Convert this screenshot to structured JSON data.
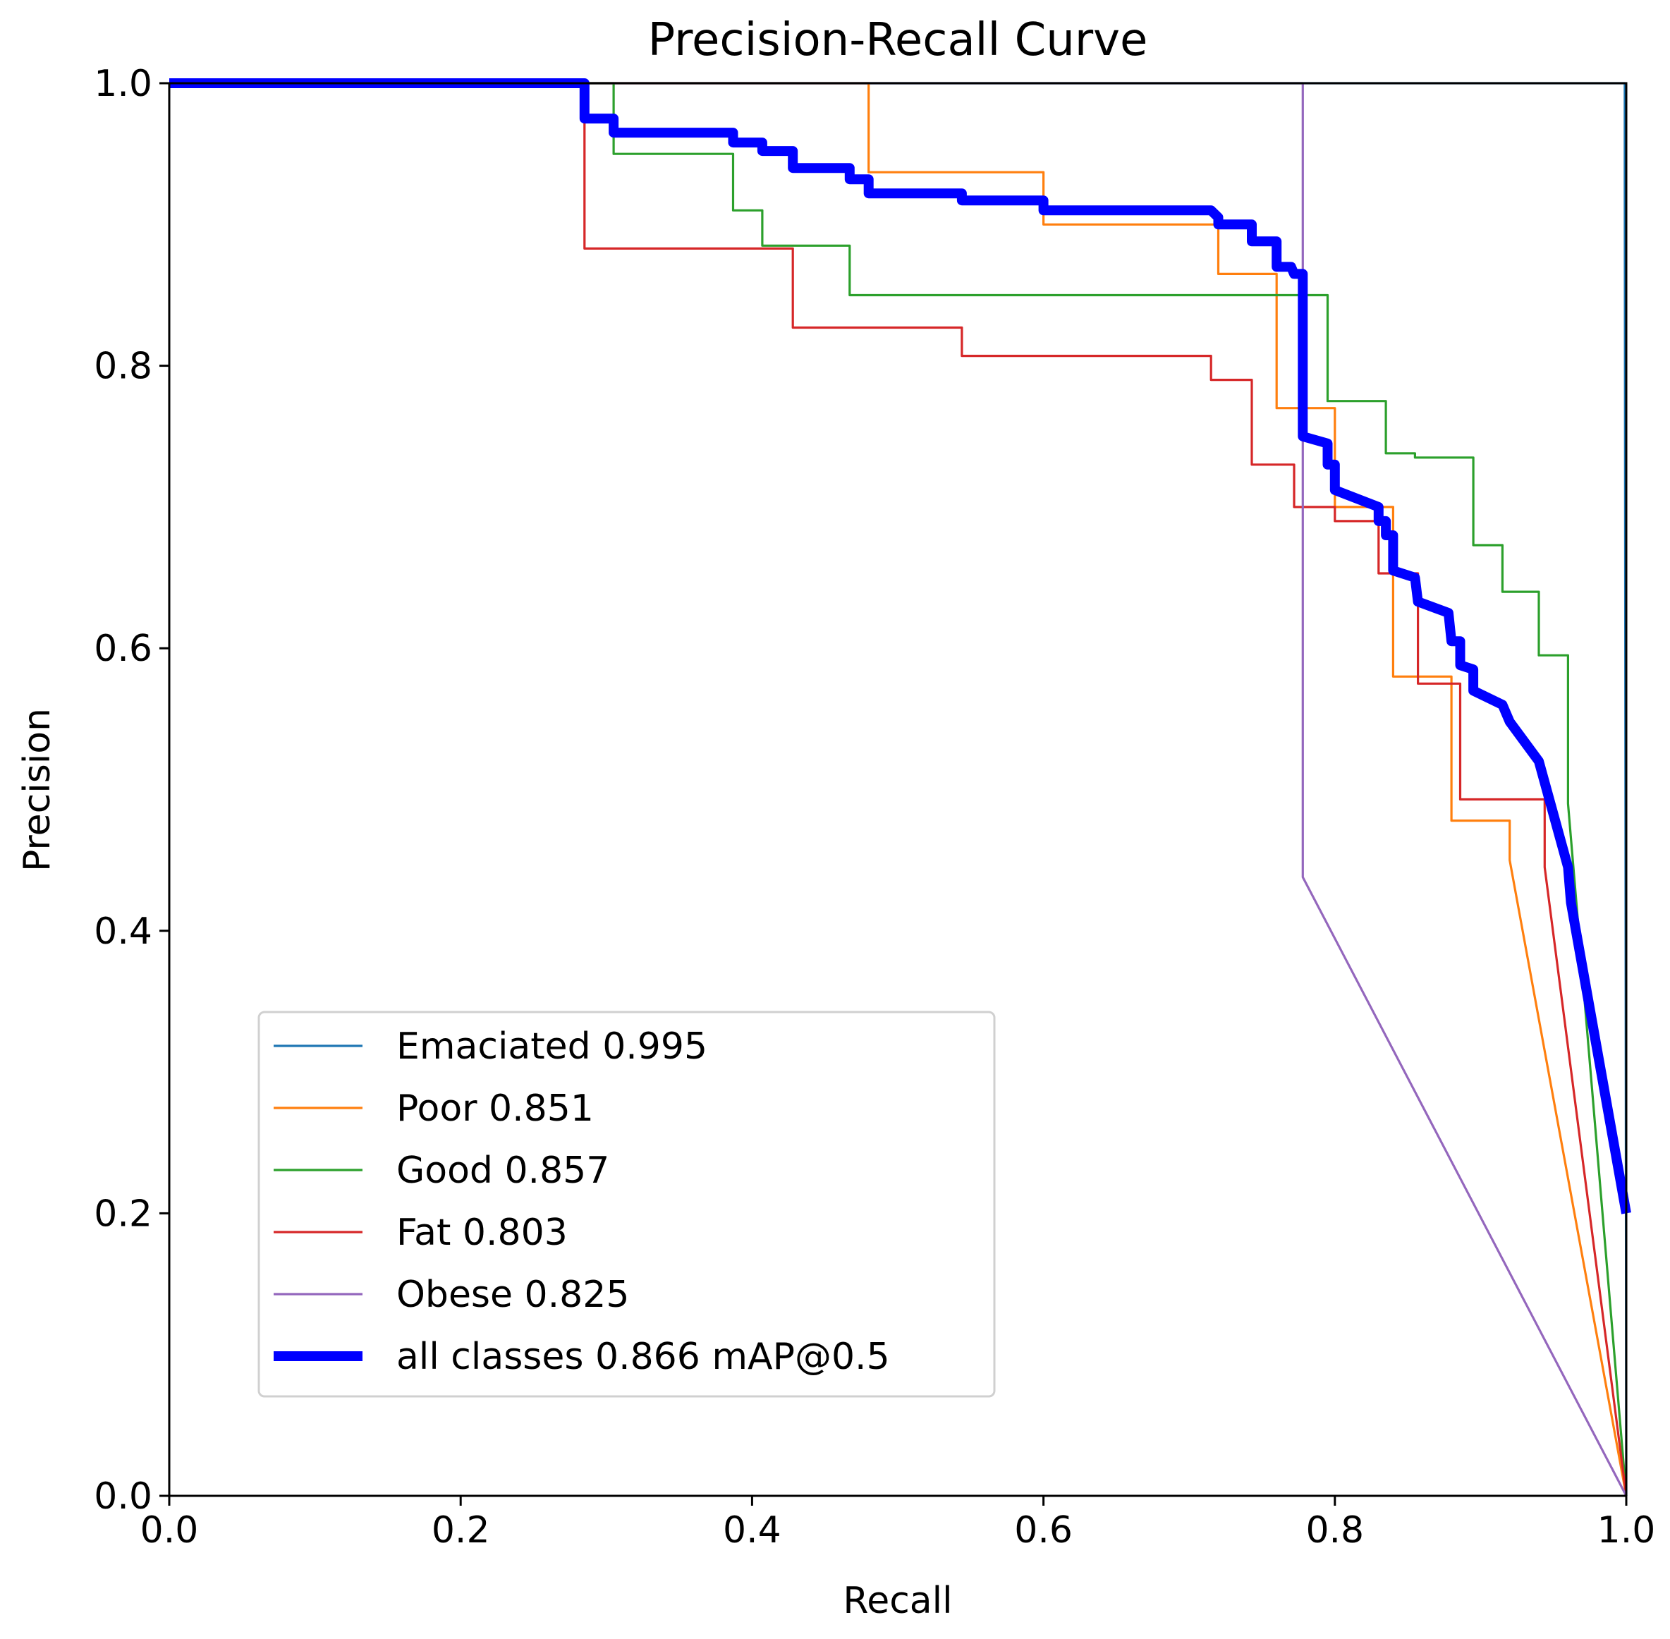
{
  "chart_data": {
    "type": "line",
    "title": "Precision-Recall Curve",
    "xlabel": "Recall",
    "ylabel": "Precision",
    "xlim": [
      0,
      1
    ],
    "ylim": [
      0,
      1
    ],
    "xticks": [
      "0.0",
      "0.2",
      "0.4",
      "0.6",
      "0.8",
      "1.0"
    ],
    "yticks": [
      "0.0",
      "0.2",
      "0.4",
      "0.6",
      "0.8",
      "1.0"
    ],
    "legend_position": "lower-left",
    "series": [
      {
        "name": "Emaciated 0.995",
        "color": "#1f77b4",
        "points": [
          [
            0,
            1
          ],
          [
            0.999,
            1
          ],
          [
            0.999,
            0.93
          ],
          [
            1.0,
            0.0
          ]
        ]
      },
      {
        "name": "Poor 0.851",
        "color": "#ff7f0e",
        "points": [
          [
            0,
            1
          ],
          [
            0.48,
            1
          ],
          [
            0.48,
            0.937
          ],
          [
            0.6,
            0.937
          ],
          [
            0.6,
            0.9
          ],
          [
            0.72,
            0.9
          ],
          [
            0.72,
            0.865
          ],
          [
            0.76,
            0.865
          ],
          [
            0.76,
            0.77
          ],
          [
            0.8,
            0.77
          ],
          [
            0.8,
            0.7
          ],
          [
            0.84,
            0.7
          ],
          [
            0.84,
            0.58
          ],
          [
            0.88,
            0.58
          ],
          [
            0.88,
            0.478
          ],
          [
            0.92,
            0.478
          ],
          [
            0.92,
            0.45
          ],
          [
            1.0,
            0.0
          ]
        ]
      },
      {
        "name": "Good 0.857",
        "color": "#2ca02c",
        "points": [
          [
            0,
            1
          ],
          [
            0.305,
            1
          ],
          [
            0.305,
            0.95
          ],
          [
            0.387,
            0.95
          ],
          [
            0.387,
            0.91
          ],
          [
            0.407,
            0.91
          ],
          [
            0.407,
            0.885
          ],
          [
            0.467,
            0.885
          ],
          [
            0.467,
            0.85
          ],
          [
            0.795,
            0.85
          ],
          [
            0.795,
            0.775
          ],
          [
            0.835,
            0.775
          ],
          [
            0.835,
            0.738
          ],
          [
            0.855,
            0.738
          ],
          [
            0.855,
            0.735
          ],
          [
            0.895,
            0.735
          ],
          [
            0.895,
            0.673
          ],
          [
            0.915,
            0.673
          ],
          [
            0.915,
            0.64
          ],
          [
            0.94,
            0.64
          ],
          [
            0.94,
            0.595
          ],
          [
            0.96,
            0.595
          ],
          [
            0.96,
            0.49
          ],
          [
            1.0,
            0.0
          ]
        ]
      },
      {
        "name": "Fat 0.803",
        "color": "#d62728",
        "points": [
          [
            0,
            1
          ],
          [
            0.285,
            1
          ],
          [
            0.285,
            0.883
          ],
          [
            0.428,
            0.883
          ],
          [
            0.428,
            0.827
          ],
          [
            0.544,
            0.827
          ],
          [
            0.544,
            0.807
          ],
          [
            0.715,
            0.807
          ],
          [
            0.715,
            0.79
          ],
          [
            0.743,
            0.79
          ],
          [
            0.743,
            0.73
          ],
          [
            0.772,
            0.73
          ],
          [
            0.772,
            0.7
          ],
          [
            0.8,
            0.7
          ],
          [
            0.8,
            0.69
          ],
          [
            0.83,
            0.69
          ],
          [
            0.83,
            0.653
          ],
          [
            0.857,
            0.653
          ],
          [
            0.857,
            0.575
          ],
          [
            0.886,
            0.575
          ],
          [
            0.886,
            0.493
          ],
          [
            0.944,
            0.493
          ],
          [
            0.944,
            0.445
          ],
          [
            1.0,
            0.0
          ]
        ]
      },
      {
        "name": "Obese 0.825",
        "color": "#9467bd",
        "points": [
          [
            0,
            1
          ],
          [
            0.778,
            1
          ],
          [
            0.778,
            0.438
          ],
          [
            1.0,
            0.0
          ]
        ]
      },
      {
        "name": "all classes 0.866 mAP@0.5",
        "color": "#0000ff",
        "bold": true,
        "points": [
          [
            0,
            1
          ],
          [
            0.285,
            1
          ],
          [
            0.285,
            0.975
          ],
          [
            0.305,
            0.975
          ],
          [
            0.305,
            0.965
          ],
          [
            0.387,
            0.965
          ],
          [
            0.387,
            0.958
          ],
          [
            0.407,
            0.958
          ],
          [
            0.407,
            0.952
          ],
          [
            0.428,
            0.952
          ],
          [
            0.428,
            0.94
          ],
          [
            0.467,
            0.94
          ],
          [
            0.467,
            0.932
          ],
          [
            0.48,
            0.932
          ],
          [
            0.48,
            0.922
          ],
          [
            0.544,
            0.922
          ],
          [
            0.544,
            0.917
          ],
          [
            0.6,
            0.917
          ],
          [
            0.6,
            0.91
          ],
          [
            0.715,
            0.91
          ],
          [
            0.72,
            0.905
          ],
          [
            0.72,
            0.9
          ],
          [
            0.743,
            0.9
          ],
          [
            0.743,
            0.888
          ],
          [
            0.76,
            0.888
          ],
          [
            0.76,
            0.87
          ],
          [
            0.77,
            0.87
          ],
          [
            0.772,
            0.865
          ],
          [
            0.778,
            0.865
          ],
          [
            0.778,
            0.75
          ],
          [
            0.795,
            0.745
          ],
          [
            0.795,
            0.73
          ],
          [
            0.8,
            0.73
          ],
          [
            0.8,
            0.712
          ],
          [
            0.83,
            0.7
          ],
          [
            0.83,
            0.69
          ],
          [
            0.835,
            0.69
          ],
          [
            0.835,
            0.68
          ],
          [
            0.84,
            0.68
          ],
          [
            0.84,
            0.655
          ],
          [
            0.855,
            0.65
          ],
          [
            0.857,
            0.633
          ],
          [
            0.878,
            0.625
          ],
          [
            0.88,
            0.605
          ],
          [
            0.886,
            0.605
          ],
          [
            0.886,
            0.588
          ],
          [
            0.895,
            0.585
          ],
          [
            0.895,
            0.57
          ],
          [
            0.915,
            0.56
          ],
          [
            0.92,
            0.548
          ],
          [
            0.94,
            0.52
          ],
          [
            0.944,
            0.505
          ],
          [
            0.96,
            0.445
          ],
          [
            0.962,
            0.42
          ],
          [
            1.0,
            0.2
          ]
        ]
      }
    ]
  }
}
